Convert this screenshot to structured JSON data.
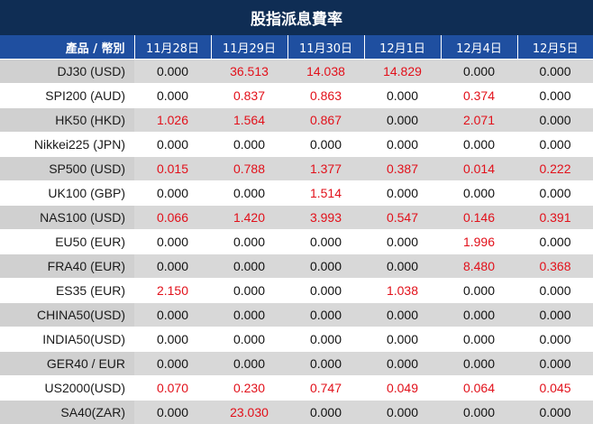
{
  "title": "股指派息費率",
  "header": {
    "first": "產品 / 幣別",
    "dates": [
      "11月28日",
      "11月29日",
      "11月30日",
      "12月1日",
      "12月4日",
      "12月5日"
    ]
  },
  "highlight_color": "#e2101a",
  "rows": [
    {
      "name": "DJ30 (USD)",
      "values": [
        "0.000",
        "36.513",
        "14.038",
        "14.829",
        "0.000",
        "0.000"
      ]
    },
    {
      "name": "SPI200 (AUD)",
      "values": [
        "0.000",
        "0.837",
        "0.863",
        "0.000",
        "0.374",
        "0.000"
      ]
    },
    {
      "name": "HK50 (HKD)",
      "values": [
        "1.026",
        "1.564",
        "0.867",
        "0.000",
        "2.071",
        "0.000"
      ]
    },
    {
      "name": "Nikkei225 (JPN)",
      "values": [
        "0.000",
        "0.000",
        "0.000",
        "0.000",
        "0.000",
        "0.000"
      ]
    },
    {
      "name": "SP500 (USD)",
      "values": [
        "0.015",
        "0.788",
        "1.377",
        "0.387",
        "0.014",
        "0.222"
      ]
    },
    {
      "name": "UK100 (GBP)",
      "values": [
        "0.000",
        "0.000",
        "1.514",
        "0.000",
        "0.000",
        "0.000"
      ]
    },
    {
      "name": "NAS100 (USD)",
      "values": [
        "0.066",
        "1.420",
        "3.993",
        "0.547",
        "0.146",
        "0.391"
      ]
    },
    {
      "name": "EU50 (EUR)",
      "values": [
        "0.000",
        "0.000",
        "0.000",
        "0.000",
        "1.996",
        "0.000"
      ]
    },
    {
      "name": "FRA40 (EUR)",
      "values": [
        "0.000",
        "0.000",
        "0.000",
        "0.000",
        "8.480",
        "0.368"
      ]
    },
    {
      "name": "ES35 (EUR)",
      "values": [
        "2.150",
        "0.000",
        "0.000",
        "1.038",
        "0.000",
        "0.000"
      ]
    },
    {
      "name": "CHINA50(USD)",
      "values": [
        "0.000",
        "0.000",
        "0.000",
        "0.000",
        "0.000",
        "0.000"
      ]
    },
    {
      "name": "INDIA50(USD)",
      "values": [
        "0.000",
        "0.000",
        "0.000",
        "0.000",
        "0.000",
        "0.000"
      ]
    },
    {
      "name": "GER40 / EUR",
      "values": [
        "0.000",
        "0.000",
        "0.000",
        "0.000",
        "0.000",
        "0.000"
      ]
    },
    {
      "name": "US2000(USD)",
      "values": [
        "0.070",
        "0.230",
        "0.747",
        "0.049",
        "0.064",
        "0.045"
      ]
    },
    {
      "name": "SA40(ZAR)",
      "values": [
        "0.000",
        "23.030",
        "0.000",
        "0.000",
        "0.000",
        "0.000"
      ]
    }
  ]
}
